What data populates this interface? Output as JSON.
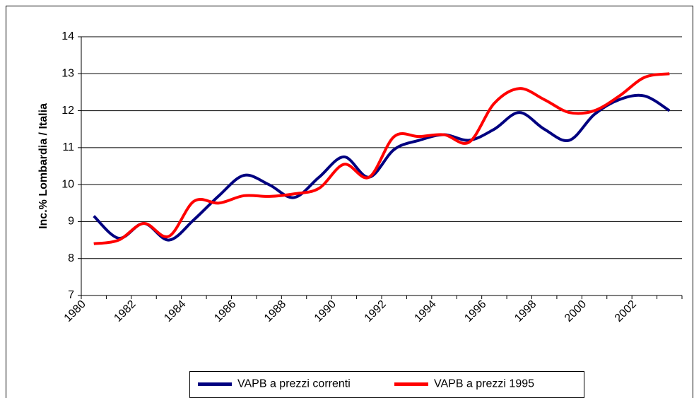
{
  "chart_data": {
    "type": "line",
    "y_label": "Inc.% Lombardia / Italia",
    "categories": [
      "1980",
      null,
      "1982",
      null,
      "1984",
      null,
      "1986",
      null,
      "1988",
      null,
      "1990",
      null,
      "1992",
      null,
      "1994",
      null,
      "1996",
      null,
      "1998",
      null,
      "2000",
      null,
      "2002",
      null
    ],
    "series": [
      {
        "name": "VAPB a prezzi correnti",
        "color": "#000080",
        "values": [
          9.15,
          8.55,
          8.95,
          8.5,
          9.05,
          9.7,
          10.25,
          10.0,
          9.65,
          10.2,
          10.75,
          10.2,
          10.95,
          11.2,
          11.35,
          11.2,
          11.5,
          11.95,
          11.5,
          11.2,
          11.9,
          12.3,
          12.4,
          12.0
        ]
      },
      {
        "name": "VAPB a prezzi 1995",
        "color": "#ff0000",
        "values": [
          8.4,
          8.5,
          8.95,
          8.6,
          9.55,
          9.5,
          9.7,
          9.68,
          9.75,
          9.9,
          10.55,
          10.2,
          11.3,
          11.3,
          11.35,
          11.15,
          12.2,
          12.6,
          12.3,
          11.95,
          12.0,
          12.4,
          12.9,
          13.0
        ]
      }
    ],
    "ylim": [
      7,
      14
    ],
    "yticks": [
      7,
      8,
      9,
      10,
      11,
      12,
      13,
      14
    ],
    "grid": true,
    "legend": "bottom"
  }
}
